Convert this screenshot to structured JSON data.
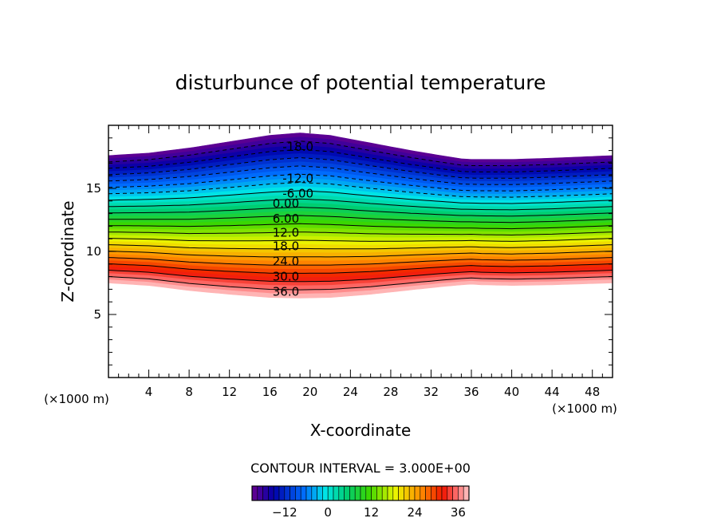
{
  "chart_data": {
    "type": "contour",
    "title": "disturbunce of potential temperature",
    "xlabel": "X-coordinate",
    "ylabel": "Z-coordinate",
    "x_unit": "(×1000 m)",
    "y_unit": "(×1000 m)",
    "xlim": [
      0,
      50
    ],
    "ylim": [
      0,
      20
    ],
    "xticks": [
      4,
      8,
      12,
      16,
      20,
      24,
      28,
      32,
      36,
      40,
      44,
      48
    ],
    "xtick_labels": [
      "4",
      "8",
      "12",
      "16",
      "20",
      "24",
      "28",
      "32",
      "36",
      "40",
      "44",
      "48"
    ],
    "yticks": [
      5,
      10,
      15
    ],
    "ytick_labels": [
      "5",
      "10",
      "15"
    ],
    "contour_interval_text": "CONTOUR INTERVAL = 3.000E+00",
    "contour_interval": 3.0,
    "value_range": [
      -21,
      39
    ],
    "layer_profile": {
      "x": [
        0,
        4,
        8,
        12,
        16,
        19,
        22,
        26,
        30,
        33,
        35,
        36,
        37,
        40,
        44,
        50
      ],
      "top": [
        17.6,
        17.8,
        18.2,
        18.7,
        19.2,
        19.4,
        19.2,
        18.6,
        18.0,
        17.6,
        17.35,
        17.3,
        17.3,
        17.3,
        17.4,
        17.6
      ],
      "bottom": [
        7.5,
        7.3,
        6.9,
        6.6,
        6.35,
        6.3,
        6.35,
        6.6,
        6.95,
        7.2,
        7.35,
        7.4,
        7.35,
        7.3,
        7.35,
        7.5
      ]
    },
    "contour_labels": [
      {
        "text": "-18.0",
        "value": -18.0,
        "x": 18.8,
        "z": 18.3
      },
      {
        "text": "-12.0",
        "value": -12.0,
        "x": 18.8,
        "z": 15.8
      },
      {
        "text": "-6.00",
        "value": -6.0,
        "x": 18.8,
        "z": 14.6
      },
      {
        "text": "0.00",
        "value": 0.0,
        "x": 17.6,
        "z": 13.8
      },
      {
        "text": "6.00",
        "value": 6.0,
        "x": 17.6,
        "z": 12.6
      },
      {
        "text": "12.0",
        "value": 12.0,
        "x": 17.6,
        "z": 11.5
      },
      {
        "text": "18.0",
        "value": 18.0,
        "x": 17.6,
        "z": 10.4
      },
      {
        "text": "24.0",
        "value": 24.0,
        "x": 17.6,
        "z": 9.2
      },
      {
        "text": "30.0",
        "value": 30.0,
        "x": 17.6,
        "z": 8.0
      },
      {
        "text": "36.0",
        "value": 36.0,
        "x": 17.6,
        "z": 6.8
      }
    ],
    "colorbar": {
      "ticks": [
        -12,
        0,
        12,
        24,
        36
      ],
      "tick_labels": [
        "−12",
        "0",
        "12",
        "24",
        "36"
      ]
    },
    "grid": false,
    "legend": "none"
  }
}
